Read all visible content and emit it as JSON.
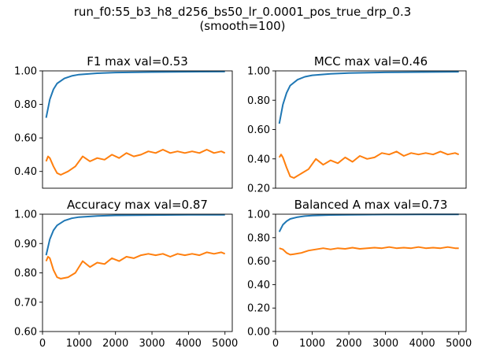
{
  "figure": {
    "title_line1": "run_f0:55_b3_h8_d256_bs50_lr_0.0001_pos_true_drp_0.3",
    "title_line2": "(smooth=100)"
  },
  "chart_data": [
    {
      "type": "line",
      "title": "F1 max val=0.53",
      "xlabel": "",
      "ylabel": "",
      "xlim": [
        0,
        5200
      ],
      "ylim": [
        0.3,
        1.0
      ],
      "yticks": [
        0.4,
        0.6,
        0.8,
        1.0
      ],
      "ytick_labels": [
        "0.40",
        "0.60",
        "0.80",
        "1.00"
      ],
      "xticks": [],
      "xtick_labels": [],
      "grid": false,
      "series": [
        {
          "color": "#1f77b4",
          "x": [
            100,
            200,
            300,
            400,
            600,
            800,
            1000,
            1500,
            2000,
            3000,
            4000,
            5000
          ],
          "y": [
            0.72,
            0.83,
            0.89,
            0.925,
            0.955,
            0.97,
            0.978,
            0.986,
            0.99,
            0.993,
            0.995,
            0.996
          ]
        },
        {
          "color": "#ff7f0e",
          "x": [
            100,
            150,
            200,
            300,
            400,
            500,
            700,
            900,
            1100,
            1300,
            1500,
            1700,
            1900,
            2100,
            2300,
            2500,
            2700,
            2900,
            3100,
            3300,
            3500,
            3700,
            3900,
            4100,
            4300,
            4500,
            4700,
            4900,
            5000
          ],
          "y": [
            0.46,
            0.49,
            0.48,
            0.43,
            0.39,
            0.38,
            0.4,
            0.43,
            0.49,
            0.46,
            0.48,
            0.47,
            0.5,
            0.48,
            0.51,
            0.49,
            0.5,
            0.52,
            0.51,
            0.53,
            0.51,
            0.52,
            0.51,
            0.52,
            0.51,
            0.53,
            0.51,
            0.52,
            0.51
          ]
        }
      ]
    },
    {
      "type": "line",
      "title": "MCC max val=0.46",
      "xlabel": "",
      "ylabel": "",
      "xlim": [
        0,
        5200
      ],
      "ylim": [
        0.2,
        1.0
      ],
      "yticks": [
        0.2,
        0.4,
        0.6,
        0.8,
        1.0
      ],
      "ytick_labels": [
        "0.20",
        "0.40",
        "0.60",
        "0.80",
        "1.00"
      ],
      "xticks": [],
      "xtick_labels": [],
      "grid": false,
      "series": [
        {
          "color": "#1f77b4",
          "x": [
            100,
            200,
            300,
            400,
            600,
            800,
            1000,
            1500,
            2000,
            3000,
            4000,
            5000
          ],
          "y": [
            0.64,
            0.77,
            0.85,
            0.9,
            0.94,
            0.96,
            0.97,
            0.98,
            0.985,
            0.99,
            0.992,
            0.994
          ]
        },
        {
          "color": "#ff7f0e",
          "x": [
            100,
            150,
            200,
            300,
            400,
            500,
            700,
            900,
            1100,
            1300,
            1500,
            1700,
            1900,
            2100,
            2300,
            2500,
            2700,
            2900,
            3100,
            3300,
            3500,
            3700,
            3900,
            4100,
            4300,
            4500,
            4700,
            4900,
            5000
          ],
          "y": [
            0.41,
            0.43,
            0.41,
            0.34,
            0.28,
            0.27,
            0.3,
            0.33,
            0.4,
            0.36,
            0.39,
            0.37,
            0.41,
            0.38,
            0.42,
            0.4,
            0.41,
            0.44,
            0.43,
            0.45,
            0.42,
            0.44,
            0.43,
            0.44,
            0.43,
            0.45,
            0.43,
            0.44,
            0.43
          ]
        }
      ]
    },
    {
      "type": "line",
      "title": "Accuracy max val=0.87",
      "xlabel": "",
      "ylabel": "",
      "xlim": [
        0,
        5200
      ],
      "ylim": [
        0.6,
        1.0
      ],
      "yticks": [
        0.6,
        0.7,
        0.8,
        0.9,
        1.0
      ],
      "ytick_labels": [
        "0.60",
        "0.70",
        "0.80",
        "0.90",
        "1.00"
      ],
      "xticks": [
        0,
        1000,
        2000,
        3000,
        4000,
        5000
      ],
      "xtick_labels": [
        "0",
        "1000",
        "2000",
        "3000",
        "4000",
        "5000"
      ],
      "grid": false,
      "series": [
        {
          "color": "#1f77b4",
          "x": [
            100,
            200,
            300,
            400,
            600,
            800,
            1000,
            1500,
            2000,
            3000,
            4000,
            5000
          ],
          "y": [
            0.86,
            0.915,
            0.945,
            0.962,
            0.978,
            0.986,
            0.99,
            0.994,
            0.996,
            0.997,
            0.998,
            0.998
          ]
        },
        {
          "color": "#ff7f0e",
          "x": [
            100,
            150,
            200,
            300,
            400,
            500,
            700,
            900,
            1100,
            1300,
            1500,
            1700,
            1900,
            2100,
            2300,
            2500,
            2700,
            2900,
            3100,
            3300,
            3500,
            3700,
            3900,
            4100,
            4300,
            4500,
            4700,
            4900,
            5000
          ],
          "y": [
            0.84,
            0.855,
            0.85,
            0.81,
            0.785,
            0.78,
            0.785,
            0.8,
            0.84,
            0.82,
            0.835,
            0.83,
            0.85,
            0.84,
            0.855,
            0.85,
            0.86,
            0.865,
            0.86,
            0.865,
            0.855,
            0.865,
            0.86,
            0.865,
            0.86,
            0.87,
            0.865,
            0.87,
            0.865
          ]
        }
      ]
    },
    {
      "type": "line",
      "title": "Balanced A max val=0.73",
      "xlabel": "",
      "ylabel": "",
      "xlim": [
        0,
        5200
      ],
      "ylim": [
        0.0,
        1.0
      ],
      "yticks": [
        0.0,
        0.2,
        0.4,
        0.6,
        0.8,
        1.0
      ],
      "ytick_labels": [
        "0.00",
        "0.20",
        "0.40",
        "0.60",
        "0.80",
        "1.00"
      ],
      "xticks": [
        0,
        1000,
        2000,
        3000,
        4000,
        5000
      ],
      "xtick_labels": [
        "0",
        "1000",
        "2000",
        "3000",
        "4000",
        "5000"
      ],
      "grid": false,
      "series": [
        {
          "color": "#1f77b4",
          "x": [
            100,
            200,
            300,
            400,
            600,
            800,
            1000,
            1500,
            2000,
            3000,
            4000,
            5000
          ],
          "y": [
            0.85,
            0.91,
            0.94,
            0.96,
            0.975,
            0.984,
            0.988,
            0.993,
            0.995,
            0.997,
            0.998,
            0.998
          ]
        },
        {
          "color": "#ff7f0e",
          "x": [
            100,
            200,
            300,
            400,
            500,
            700,
            900,
            1100,
            1300,
            1500,
            1700,
            1900,
            2100,
            2300,
            2500,
            2700,
            2900,
            3100,
            3300,
            3500,
            3700,
            3900,
            4100,
            4300,
            4500,
            4700,
            4900,
            5000
          ],
          "y": [
            0.71,
            0.7,
            0.67,
            0.655,
            0.66,
            0.67,
            0.69,
            0.7,
            0.71,
            0.7,
            0.71,
            0.705,
            0.715,
            0.705,
            0.71,
            0.715,
            0.71,
            0.72,
            0.71,
            0.715,
            0.71,
            0.72,
            0.71,
            0.715,
            0.71,
            0.72,
            0.71,
            0.71
          ]
        }
      ]
    }
  ]
}
